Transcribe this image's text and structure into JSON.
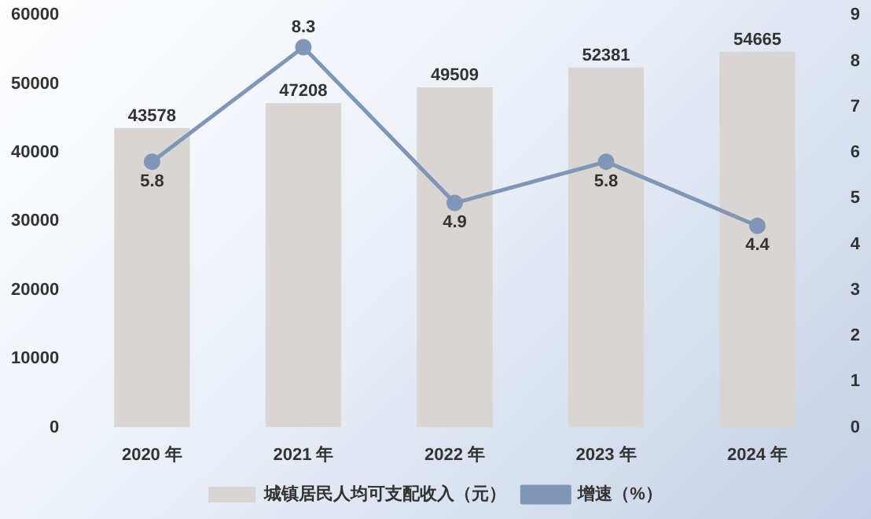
{
  "chart_data": {
    "type": "bar",
    "categories": [
      "2020 年",
      "2021 年",
      "2022 年",
      "2023 年",
      "2024 年"
    ],
    "series": [
      {
        "name": "城镇居民人均可支配收入（元）",
        "color": "#d8d5d2",
        "values": [
          43578,
          47208,
          49509,
          52381,
          54665
        ]
      },
      {
        "name": "增速（%）",
        "type": "line",
        "axis": "y2",
        "color": "#7f96b6",
        "values": [
          5.8,
          8.3,
          4.9,
          5.8,
          4.4
        ]
      }
    ],
    "ylim": [
      0,
      60000
    ],
    "yticks": [
      0,
      10000,
      20000,
      30000,
      40000,
      50000,
      60000
    ],
    "y2lim": [
      0,
      9
    ],
    "y2ticks": [
      0,
      1,
      2,
      3,
      4,
      5,
      6,
      7,
      8,
      9
    ],
    "data_labels": true,
    "grid": false,
    "legend": "bottom",
    "marker": "circle",
    "line_style": "solid"
  }
}
